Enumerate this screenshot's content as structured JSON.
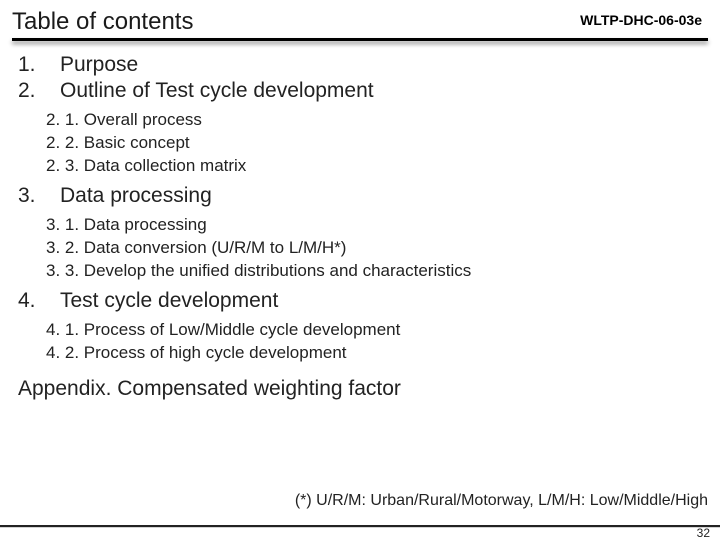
{
  "title": "Table of contents",
  "doc_code": "WLTP-DHC-06-03e",
  "items": {
    "s1": {
      "num": "1.",
      "text": "Purpose"
    },
    "s2": {
      "num": "2.",
      "text": "Outline of Test cycle development"
    },
    "s2_subs": [
      "2. 1. Overall process",
      "2. 2. Basic concept",
      "2. 3. Data collection matrix"
    ],
    "s3": {
      "num": "3.",
      "text": "Data processing"
    },
    "s3_subs": [
      "3. 1. Data processing",
      "3. 2. Data conversion (U/R/M to L/M/H*)",
      "3. 3. Develop the unified distributions and characteristics"
    ],
    "s4": {
      "num": "4.",
      "text": "Test cycle development"
    },
    "s4_subs": [
      "4. 1. Process of Low/Middle cycle development",
      "4. 2. Process of high cycle development"
    ],
    "appendix": "Appendix.  Compensated weighting factor"
  },
  "footnote": "(*) U/R/M: Urban/Rural/Motorway, L/M/H: Low/Middle/High",
  "page_number": "32"
}
